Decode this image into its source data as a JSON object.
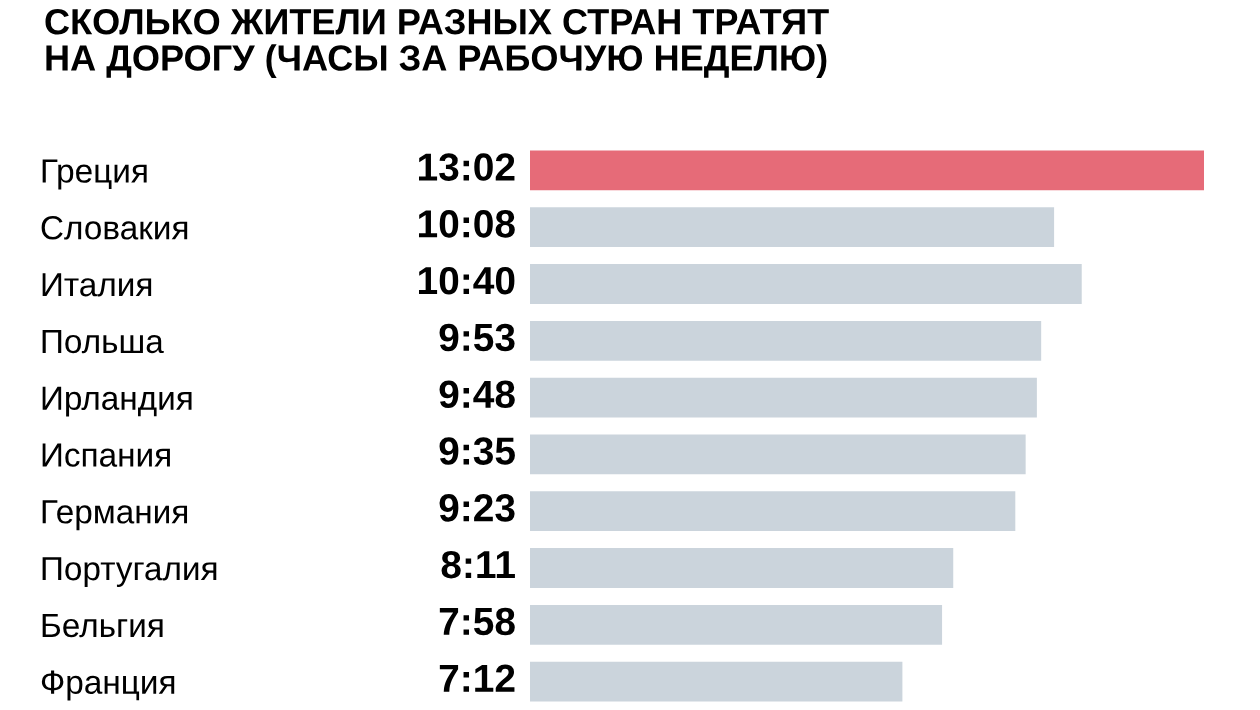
{
  "chart_data": {
    "type": "bar",
    "orientation": "horizontal",
    "title": "СКОЛЬКО ЖИТЕЛИ РАЗНЫХ СТРАН ТРАТЯТ\nНА ДОРОГУ (ЧАСЫ ЗА РАБОЧУЮ НЕДЕЛЮ)",
    "categories": [
      "Греция",
      "Словакия",
      "Италия",
      "Польша",
      "Ирландия",
      "Испания",
      "Германия",
      "Португалия",
      "Бельгия",
      "Франция"
    ],
    "values": [
      13.033,
      10.133,
      10.667,
      9.883,
      9.8,
      9.583,
      9.383,
      8.183,
      7.967,
      7.2
    ],
    "value_labels": [
      "13:02",
      "10:08",
      "10:40",
      "9:53",
      "9:48",
      "9:35",
      "9:23",
      "8:11",
      "7:58",
      "7:12"
    ],
    "colors": [
      "#e66b78",
      "#cbd4dc",
      "#cbd4dc",
      "#cbd4dc",
      "#cbd4dc",
      "#cbd4dc",
      "#cbd4dc",
      "#cbd4dc",
      "#cbd4dc",
      "#cbd4dc"
    ]
  }
}
